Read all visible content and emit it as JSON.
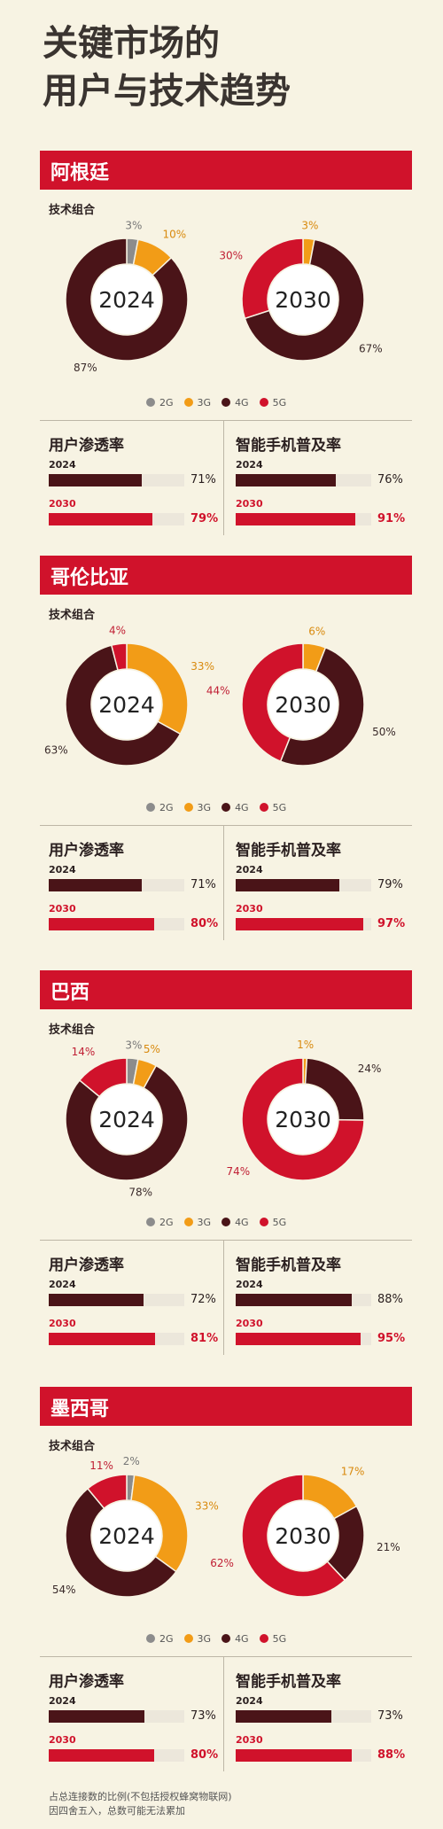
{
  "title_line1": "关键市场的",
  "title_line2": "用户与技术趋势",
  "legend": [
    {
      "label": "2G",
      "color": "#8c8c8c"
    },
    {
      "label": "3G",
      "color": "#f29c17"
    },
    {
      "label": "4G",
      "color": "#4a1418"
    },
    {
      "label": "5G",
      "color": "#d0122b"
    }
  ],
  "colors": {
    "2G": "#8c8c8c",
    "3G": "#f29c17",
    "4G": "#4a1418",
    "5G": "#d0122b",
    "bar_track": "#ece7db"
  },
  "footnote_line1": "占总连接数的比例(不包括授权蜂窝物联网)",
  "footnote_line2": "因四舍五入，总数可能无法累加",
  "countries": [
    {
      "name": "阿根廷",
      "tech_label": "技术组合",
      "donuts": [
        {
          "year": "2024",
          "segments": [
            3,
            10,
            87,
            0
          ],
          "labels": [
            "3%",
            "10%",
            "87%",
            ""
          ]
        },
        {
          "year": "2030",
          "segments": [
            0,
            3,
            67,
            30
          ],
          "labels": [
            "",
            "3%",
            "67%",
            "30%"
          ]
        }
      ],
      "user_title": "用户渗透率",
      "smart_title": "智能手机普及率",
      "user": [
        {
          "year": "2024",
          "value": 71,
          "label": "71%"
        },
        {
          "year": "2030",
          "value": 79,
          "label": "79%"
        }
      ],
      "smart": [
        {
          "year": "2024",
          "value": 76,
          "label": "76%"
        },
        {
          "year": "2030",
          "value": 91,
          "label": "91%"
        }
      ]
    },
    {
      "name": "哥伦比亚",
      "tech_label": "技术组合",
      "donuts": [
        {
          "year": "2024",
          "segments": [
            0,
            33,
            63,
            4
          ],
          "labels": [
            "",
            "33%",
            "63%",
            "4%"
          ]
        },
        {
          "year": "2030",
          "segments": [
            0,
            6,
            50,
            44
          ],
          "labels": [
            "",
            "6%",
            "50%",
            "44%"
          ]
        }
      ],
      "user_title": "用户渗透率",
      "smart_title": "智能手机普及率",
      "user": [
        {
          "year": "2024",
          "value": 71,
          "label": "71%"
        },
        {
          "year": "2030",
          "value": 80,
          "label": "80%"
        }
      ],
      "smart": [
        {
          "year": "2024",
          "value": 79,
          "label": "79%"
        },
        {
          "year": "2030",
          "value": 97,
          "label": "97%"
        }
      ]
    },
    {
      "name": "巴西",
      "tech_label": "技术组合",
      "donuts": [
        {
          "year": "2024",
          "segments": [
            3,
            5,
            78,
            14
          ],
          "labels": [
            "3%",
            "5%",
            "78%",
            "14%"
          ]
        },
        {
          "year": "2030",
          "segments": [
            0,
            1,
            24,
            74
          ],
          "labels": [
            "",
            "1%",
            "24%",
            "74%"
          ]
        }
      ],
      "user_title": "用户渗透率",
      "smart_title": "智能手机普及率",
      "user": [
        {
          "year": "2024",
          "value": 72,
          "label": "72%"
        },
        {
          "year": "2030",
          "value": 81,
          "label": "81%"
        }
      ],
      "smart": [
        {
          "year": "2024",
          "value": 88,
          "label": "88%"
        },
        {
          "year": "2030",
          "value": 95,
          "label": "95%"
        }
      ]
    },
    {
      "name": "墨西哥",
      "tech_label": "技术组合",
      "donuts": [
        {
          "year": "2024",
          "segments": [
            2,
            33,
            54,
            11
          ],
          "labels": [
            "2%",
            "33%",
            "54%",
            "11%"
          ]
        },
        {
          "year": "2030",
          "segments": [
            0,
            17,
            21,
            62
          ],
          "labels": [
            "",
            "17%",
            "21%",
            "62%"
          ]
        }
      ],
      "user_title": "用户渗透率",
      "smart_title": "智能手机普及率",
      "user": [
        {
          "year": "2024",
          "value": 73,
          "label": "73%"
        },
        {
          "year": "2030",
          "value": 80,
          "label": "80%"
        }
      ],
      "smart": [
        {
          "year": "2024",
          "value": 73,
          "label": "73%"
        },
        {
          "year": "2030",
          "value": 88,
          "label": "88%"
        }
      ]
    }
  ],
  "chart_data": [
    {
      "type": "pie",
      "title": "阿根廷 2024",
      "categories": [
        "2G",
        "3G",
        "4G",
        "5G"
      ],
      "values": [
        3,
        10,
        87,
        0
      ]
    },
    {
      "type": "pie",
      "title": "阿根廷 2030",
      "categories": [
        "2G",
        "3G",
        "4G",
        "5G"
      ],
      "values": [
        0,
        3,
        67,
        30
      ]
    },
    {
      "type": "bar",
      "title": "阿根廷 用户渗透率",
      "categories": [
        "2024",
        "2030"
      ],
      "values": [
        71,
        79
      ]
    },
    {
      "type": "bar",
      "title": "阿根廷 智能手机普及率",
      "categories": [
        "2024",
        "2030"
      ],
      "values": [
        76,
        91
      ]
    },
    {
      "type": "pie",
      "title": "哥伦比亚 2024",
      "categories": [
        "2G",
        "3G",
        "4G",
        "5G"
      ],
      "values": [
        0,
        33,
        63,
        4
      ]
    },
    {
      "type": "pie",
      "title": "哥伦比亚 2030",
      "categories": [
        "2G",
        "3G",
        "4G",
        "5G"
      ],
      "values": [
        0,
        6,
        50,
        44
      ]
    },
    {
      "type": "bar",
      "title": "哥伦比亚 用户渗透率",
      "categories": [
        "2024",
        "2030"
      ],
      "values": [
        71,
        80
      ]
    },
    {
      "type": "bar",
      "title": "哥伦比亚 智能手机普及率",
      "categories": [
        "2024",
        "2030"
      ],
      "values": [
        79,
        97
      ]
    },
    {
      "type": "pie",
      "title": "巴西 2024",
      "categories": [
        "2G",
        "3G",
        "4G",
        "5G"
      ],
      "values": [
        3,
        5,
        78,
        14
      ]
    },
    {
      "type": "pie",
      "title": "巴西 2030",
      "categories": [
        "2G",
        "3G",
        "4G",
        "5G"
      ],
      "values": [
        0,
        1,
        24,
        74
      ]
    },
    {
      "type": "bar",
      "title": "巴西 用户渗透率",
      "categories": [
        "2024",
        "2030"
      ],
      "values": [
        72,
        81
      ]
    },
    {
      "type": "bar",
      "title": "巴西 智能手机普及率",
      "categories": [
        "2024",
        "2030"
      ],
      "values": [
        88,
        95
      ]
    },
    {
      "type": "pie",
      "title": "墨西哥 2024",
      "categories": [
        "2G",
        "3G",
        "4G",
        "5G"
      ],
      "values": [
        2,
        33,
        54,
        11
      ]
    },
    {
      "type": "pie",
      "title": "墨西哥 2030",
      "categories": [
        "2G",
        "3G",
        "4G",
        "5G"
      ],
      "values": [
        0,
        17,
        21,
        62
      ]
    },
    {
      "type": "bar",
      "title": "墨西哥 用户渗透率",
      "categories": [
        "2024",
        "2030"
      ],
      "values": [
        73,
        80
      ]
    },
    {
      "type": "bar",
      "title": "墨西哥 智能手机普及率",
      "categories": [
        "2024",
        "2030"
      ],
      "values": [
        73,
        88
      ]
    }
  ]
}
